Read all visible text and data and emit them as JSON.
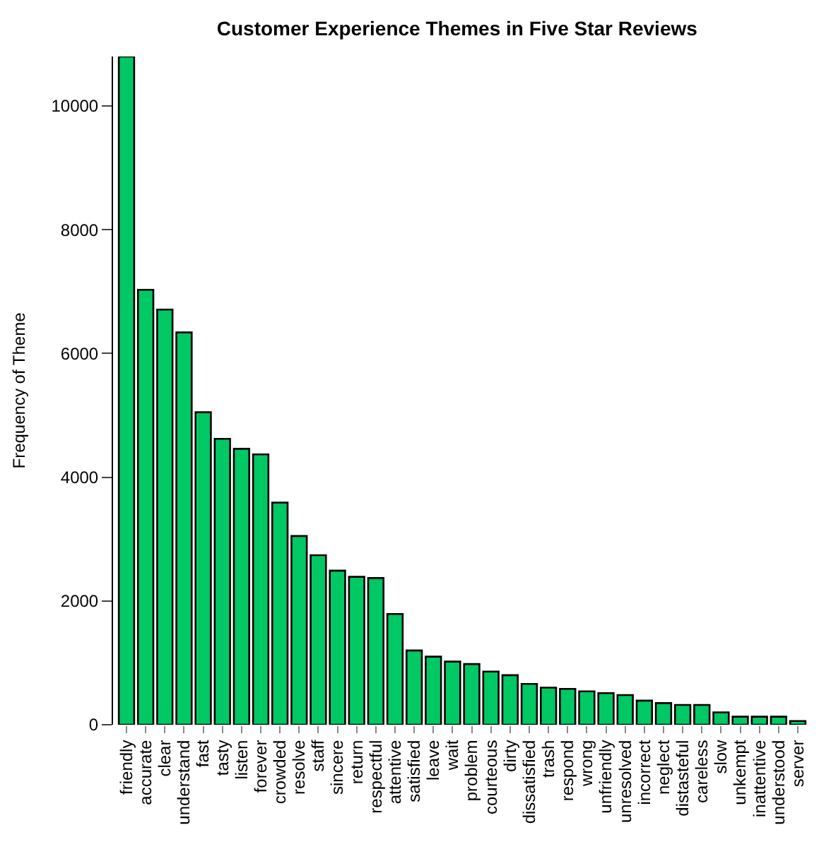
{
  "chart_data": {
    "type": "bar",
    "title": "Customer Experience Themes in Five Star Reviews",
    "ylabel": "Frequency of Theme",
    "categories": [
      "friendly",
      "accurate",
      "clear",
      "understand",
      "fast",
      "tasty",
      "listen",
      "forever",
      "crowded",
      "resolve",
      "staff",
      "sincere",
      "return",
      "respectful",
      "attentive",
      "satisfied",
      "leave",
      "wait",
      "problem",
      "courteous",
      "dirty",
      "dissatisfied",
      "trash",
      "respond",
      "wrong",
      "unfriendly",
      "unresolved",
      "incorrect",
      "neglect",
      "distasteful",
      "careless",
      "slow",
      "unkempt",
      "inattentive",
      "understood",
      "server"
    ],
    "values": [
      10800,
      7030,
      6710,
      6340,
      5050,
      4620,
      4460,
      4370,
      3590,
      3050,
      2740,
      2490,
      2390,
      2370,
      1790,
      1200,
      1100,
      1020,
      980,
      860,
      800,
      660,
      600,
      580,
      540,
      510,
      480,
      390,
      350,
      320,
      320,
      200,
      130,
      130,
      130,
      60
    ],
    "color": "#00c864",
    "ylim": [
      0,
      10800
    ],
    "yticks": [
      0,
      2000,
      4000,
      6000,
      8000,
      10000
    ]
  }
}
